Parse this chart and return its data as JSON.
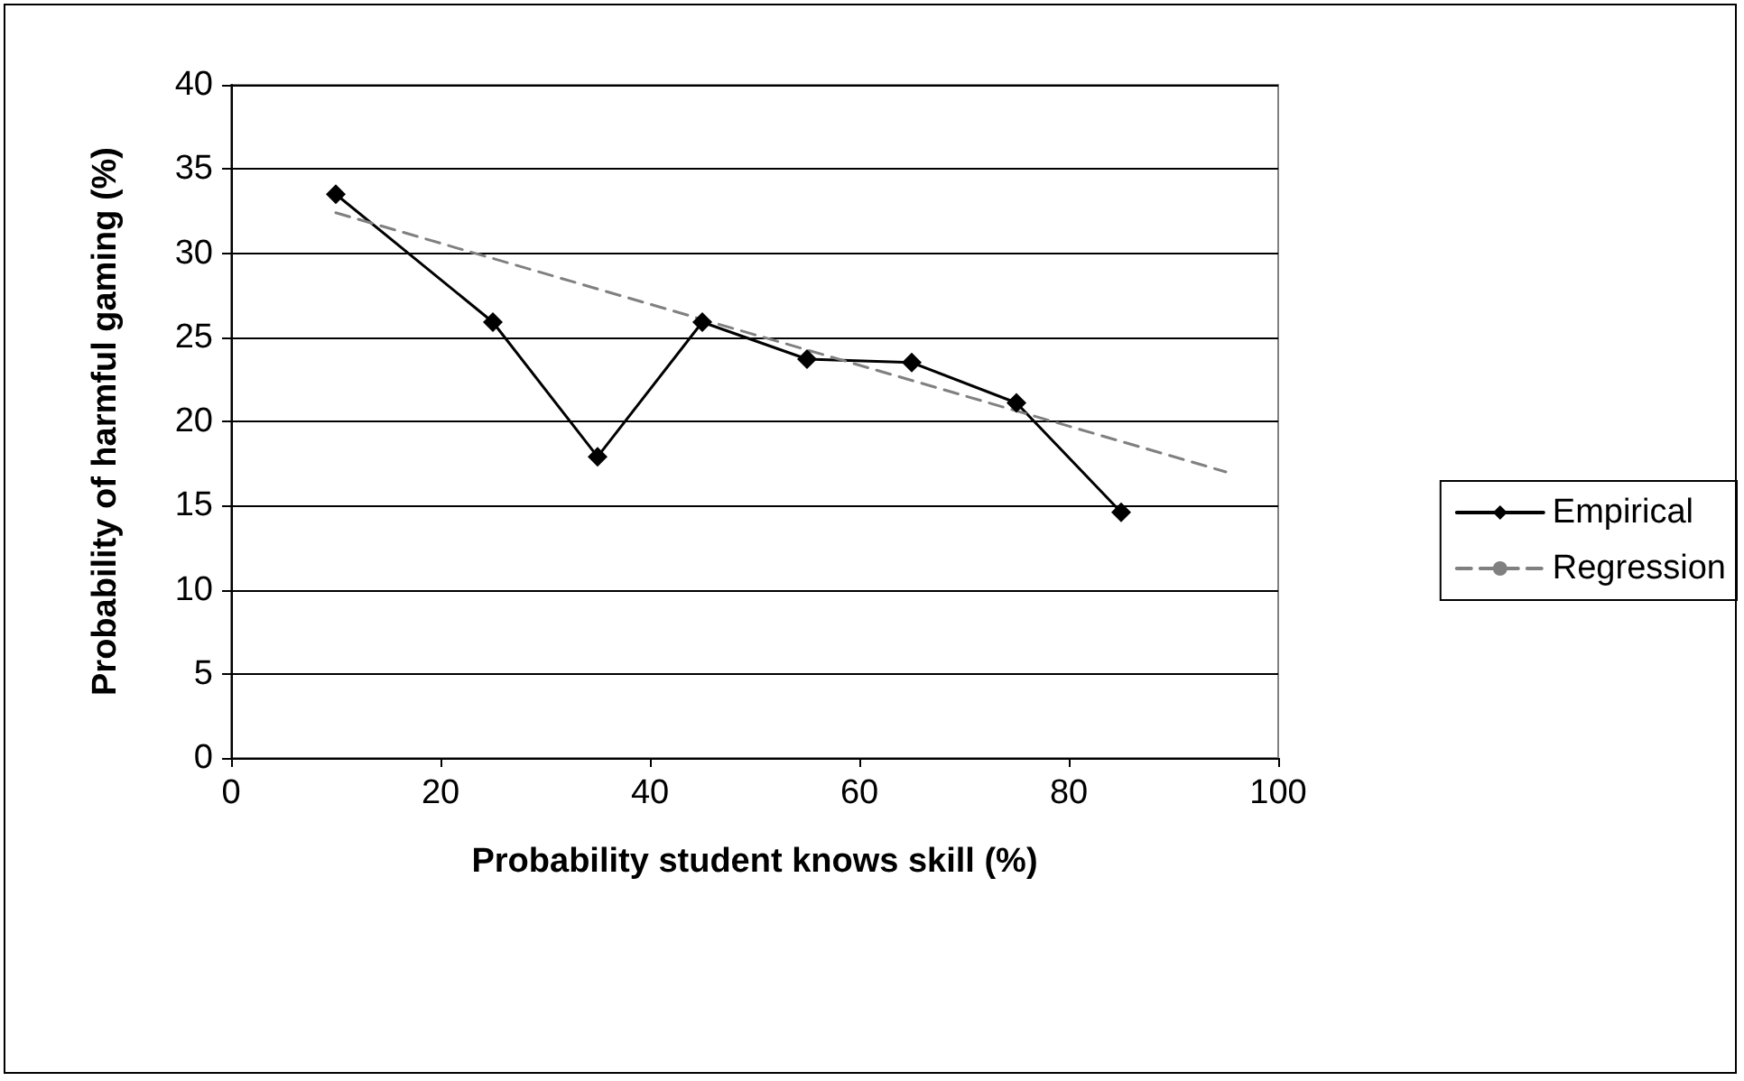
{
  "chart_data": {
    "type": "line",
    "xlabel": "Probability student knows skill (%)",
    "ylabel": "Probability of harmful gaming (%)",
    "xlim": [
      0,
      100
    ],
    "xticks": [
      0,
      20,
      40,
      60,
      80,
      100
    ],
    "ylim": [
      0,
      40
    ],
    "yticks": [
      0,
      5,
      10,
      15,
      20,
      25,
      30,
      35,
      40
    ],
    "grid": "y",
    "legend": "right",
    "series": [
      {
        "name": "Empirical",
        "color": "#000000",
        "marker": "diamond",
        "line_style": "solid",
        "x": [
          10,
          25,
          35,
          45,
          55,
          65,
          75,
          85
        ],
        "values": [
          33.5,
          25.9,
          17.9,
          25.9,
          23.7,
          23.5,
          21.1,
          14.6
        ]
      },
      {
        "name": "Regression",
        "color": "#808080",
        "marker": "none",
        "line_style": "dashed",
        "x": [
          10,
          95
        ],
        "values": [
          32.4,
          17.0
        ]
      }
    ]
  }
}
